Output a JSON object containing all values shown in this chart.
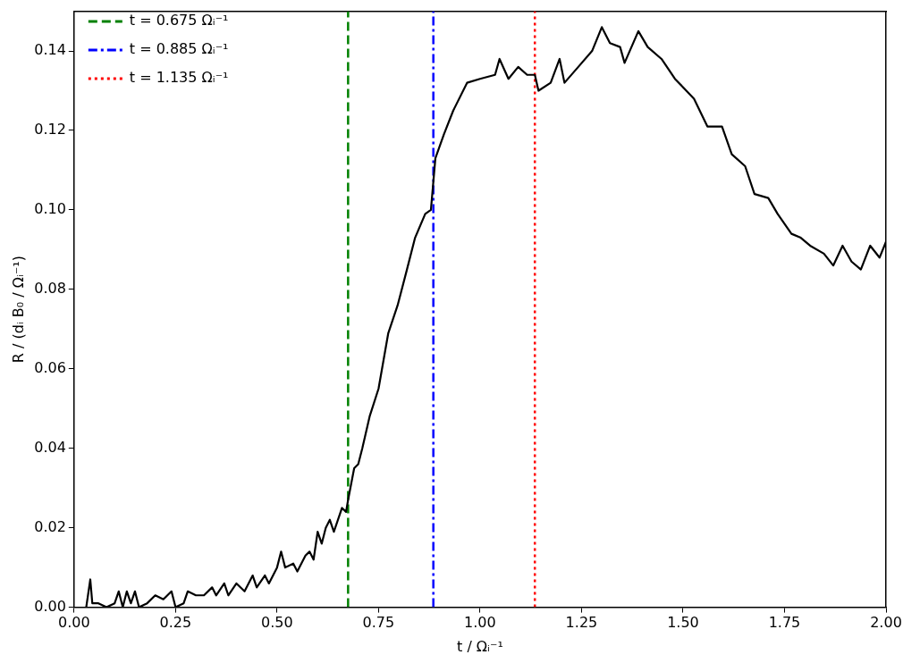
{
  "chart_data": {
    "type": "line",
    "xlabel": "t / Ωᵢ⁻¹",
    "ylabel": "R / (dᵢ B₀ / Ωᵢ⁻¹)",
    "series": [
      {
        "color": "#000000",
        "x": [
          0.03,
          0.04,
          0.045,
          0.06,
          0.08,
          0.1,
          0.11,
          0.12,
          0.13,
          0.14,
          0.15,
          0.16,
          0.18,
          0.2,
          0.22,
          0.24,
          0.25,
          0.27,
          0.28,
          0.3,
          0.32,
          0.34,
          0.35,
          0.37,
          0.38,
          0.4,
          0.42,
          0.44,
          0.45,
          0.47,
          0.48,
          0.5,
          0.51,
          0.52,
          0.54,
          0.55,
          0.57,
          0.58,
          0.59,
          0.6,
          0.61,
          0.62,
          0.63,
          0.64,
          0.66,
          0.67,
          0.675,
          0.69,
          0.7,
          0.71,
          0.728,
          0.75,
          0.774,
          0.797,
          0.82,
          0.84,
          0.865,
          0.879,
          0.89,
          0.911,
          0.934,
          0.968,
          1.0,
          1.037,
          1.048,
          1.07,
          1.094,
          1.116,
          1.135,
          1.144,
          1.174,
          1.196,
          1.208,
          1.242,
          1.276,
          1.3,
          1.32,
          1.345,
          1.356,
          1.39,
          1.413,
          1.447,
          1.48,
          1.527,
          1.56,
          1.596,
          1.62,
          1.653,
          1.676,
          1.71,
          1.733,
          1.767,
          1.79,
          1.813,
          1.847,
          1.87,
          1.893,
          1.915,
          1.938,
          1.961,
          1.984,
          2.0
        ],
        "values": [
          0,
          0.007,
          0.001,
          0.001,
          0,
          0.001,
          0.004,
          0,
          0.004,
          0.001,
          0.004,
          0,
          0.001,
          0.003,
          0.002,
          0.004,
          0,
          0.001,
          0.004,
          0.003,
          0.003,
          0.005,
          0.003,
          0.006,
          0.003,
          0.006,
          0.004,
          0.008,
          0.005,
          0.008,
          0.006,
          0.01,
          0.014,
          0.01,
          0.011,
          0.009,
          0.013,
          0.014,
          0.012,
          0.019,
          0.016,
          0.02,
          0.022,
          0.019,
          0.025,
          0.024,
          0.027,
          0.035,
          0.036,
          0.04,
          0.048,
          0.055,
          0.069,
          0.076,
          0.085,
          0.093,
          0.099,
          0.1,
          0.113,
          0.119,
          0.125,
          0.132,
          0.133,
          0.134,
          0.138,
          0.133,
          0.136,
          0.134,
          0.134,
          0.13,
          0.132,
          0.138,
          0.132,
          0.136,
          0.14,
          0.146,
          0.142,
          0.141,
          0.137,
          0.145,
          0.141,
          0.138,
          0.133,
          0.128,
          0.121,
          0.121,
          0.114,
          0.111,
          0.104,
          0.103,
          0.099,
          0.094,
          0.093,
          0.091,
          0.089,
          0.086,
          0.091,
          0.087,
          0.085,
          0.091,
          0.088,
          0.092
        ]
      },
      {
        "name": "t = 0.675 Ωᵢ⁻¹",
        "color": "#008000",
        "line_style": "dashed",
        "x": [
          0.675,
          0.675
        ],
        "values": [
          0,
          0.15
        ]
      },
      {
        "name": "t = 0.885 Ωᵢ⁻¹",
        "color": "#0000ff",
        "line_style": "dashdot",
        "x": [
          0.885,
          0.885
        ],
        "values": [
          0,
          0.15
        ]
      },
      {
        "name": "t = 1.135 Ωᵢ⁻¹",
        "color": "#ff0000",
        "line_style": "dotted",
        "x": [
          1.135,
          1.135
        ],
        "values": [
          0,
          0.15
        ]
      }
    ],
    "xlim": [
      0,
      2
    ],
    "xticks": [
      {
        "value": 0,
        "label": "0.00"
      },
      0.25,
      {
        "value": 0.5,
        "label": "0.50"
      },
      {
        "value": 0.75,
        "label": "0.75"
      },
      {
        "value": 1,
        "label": "1.00"
      },
      1.25,
      {
        "value": 1.5,
        "label": "1.50"
      },
      1.75,
      {
        "value": 2,
        "label": "2.00"
      }
    ],
    "ylim": [
      0,
      0.15
    ],
    "yticks": [
      {
        "value": 0,
        "label": "0.00"
      },
      0.02,
      0.04,
      0.06,
      0.08,
      {
        "value": 0.1,
        "label": "0.10"
      },
      0.12,
      0.14
    ],
    "legend": "top left",
    "grid": false,
    "marker": "none",
    "line_style": "solid"
  }
}
